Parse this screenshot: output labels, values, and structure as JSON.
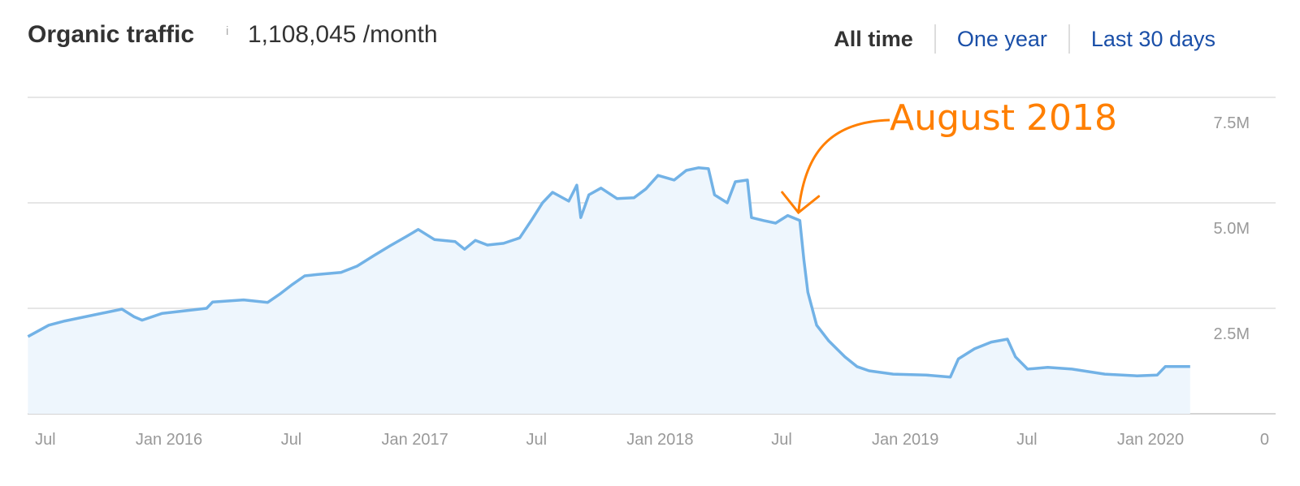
{
  "header": {
    "title": "Organic traffic",
    "info_icon": "i",
    "value": "1,108,045 /month",
    "tabs": [
      {
        "label": "All time",
        "active": true
      },
      {
        "label": "One year",
        "active": false
      },
      {
        "label": "Last 30 days",
        "active": false
      }
    ]
  },
  "colors": {
    "line": "#72b2e6",
    "fill": "#eef6fd",
    "annotation": "#ff7f00",
    "grid": "#e6e6e6",
    "tab_link": "#1a4fa8"
  },
  "chart_data": {
    "type": "area",
    "title": "",
    "xlabel": "",
    "ylabel": "",
    "ylim": [
      0,
      7500000
    ],
    "y_ticks": [
      {
        "value": 0,
        "label": "0"
      },
      {
        "value": 2500000,
        "label": "2.5M"
      },
      {
        "value": 5000000,
        "label": "5.0M"
      },
      {
        "value": 7500000,
        "label": "7.5M"
      }
    ],
    "x_ticks": [
      {
        "date": "2015-07-01",
        "label": "Jul"
      },
      {
        "date": "2016-01-01",
        "label": "Jan 2016"
      },
      {
        "date": "2016-07-01",
        "label": "Jul"
      },
      {
        "date": "2017-01-01",
        "label": "Jan 2017"
      },
      {
        "date": "2017-07-01",
        "label": "Jul"
      },
      {
        "date": "2018-01-01",
        "label": "Jan 2018"
      },
      {
        "date": "2018-07-01",
        "label": "Jul"
      },
      {
        "date": "2019-01-01",
        "label": "Jan 2019"
      },
      {
        "date": "2019-07-01",
        "label": "Jul"
      },
      {
        "date": "2020-01-01",
        "label": "Jan 2020"
      }
    ],
    "grid": true,
    "y_axis_position": "right",
    "annotation": {
      "label": "August 2018",
      "date": "2018-08-01"
    },
    "series": [
      {
        "x": [
          "2015-06-05",
          "2015-07-06",
          "2015-07-30",
          "2015-10-23",
          "2015-11-10",
          "2015-11-22",
          "2015-12-22",
          "2016-02-26",
          "2016-03-06",
          "2016-04-21",
          "2016-05-27",
          "2016-06-15",
          "2016-07-03",
          "2016-07-21",
          "2016-08-08",
          "2016-09-13",
          "2016-10-07",
          "2016-11-01",
          "2016-11-25",
          "2016-12-19",
          "2017-01-06",
          "2017-01-30",
          "2017-03-02",
          "2017-03-16",
          "2017-04-01",
          "2017-04-19",
          "2017-05-13",
          "2017-06-06",
          "2017-06-24",
          "2017-07-10",
          "2017-07-25",
          "2017-08-18",
          "2017-08-30",
          "2017-09-05",
          "2017-09-17",
          "2017-10-05",
          "2017-10-29",
          "2017-11-23",
          "2017-12-11",
          "2017-12-29",
          "2018-01-22",
          "2018-02-09",
          "2018-02-27",
          "2018-03-14",
          "2018-03-23",
          "2018-04-11",
          "2018-04-23",
          "2018-05-11",
          "2018-05-17",
          "2018-06-04",
          "2018-06-22",
          "2018-07-10",
          "2018-07-28",
          "2018-08-03",
          "2018-08-09",
          "2018-08-22",
          "2018-09-09",
          "2018-10-03",
          "2018-10-21",
          "2018-11-08",
          "2018-12-14",
          "2019-02-01",
          "2019-03-09",
          "2019-03-21",
          "2019-04-14",
          "2019-05-09",
          "2019-06-02",
          "2019-06-14",
          "2019-07-02",
          "2019-08-01",
          "2019-09-06",
          "2019-10-25",
          "2019-12-12",
          "2020-01-11",
          "2020-01-23",
          "2020-02-29"
        ],
        "y": [
          1830000,
          2100000,
          2200000,
          2480000,
          2300000,
          2220000,
          2380000,
          2500000,
          2650000,
          2700000,
          2640000,
          2850000,
          3070000,
          3270000,
          3300000,
          3350000,
          3500000,
          3750000,
          3980000,
          4200000,
          4370000,
          4130000,
          4080000,
          3900000,
          4110000,
          4000000,
          4040000,
          4170000,
          4600000,
          5000000,
          5250000,
          5040000,
          5420000,
          4650000,
          5190000,
          5350000,
          5100000,
          5120000,
          5330000,
          5650000,
          5540000,
          5770000,
          5830000,
          5810000,
          5190000,
          5000000,
          5500000,
          5540000,
          4650000,
          4580000,
          4520000,
          4700000,
          4580000,
          3650000,
          2880000,
          2100000,
          1730000,
          1350000,
          1120000,
          1020000,
          940000,
          920000,
          870000,
          1300000,
          1540000,
          1700000,
          1770000,
          1350000,
          1060000,
          1100000,
          1060000,
          940000,
          900000,
          920000,
          1120000,
          1120000
        ]
      }
    ]
  }
}
